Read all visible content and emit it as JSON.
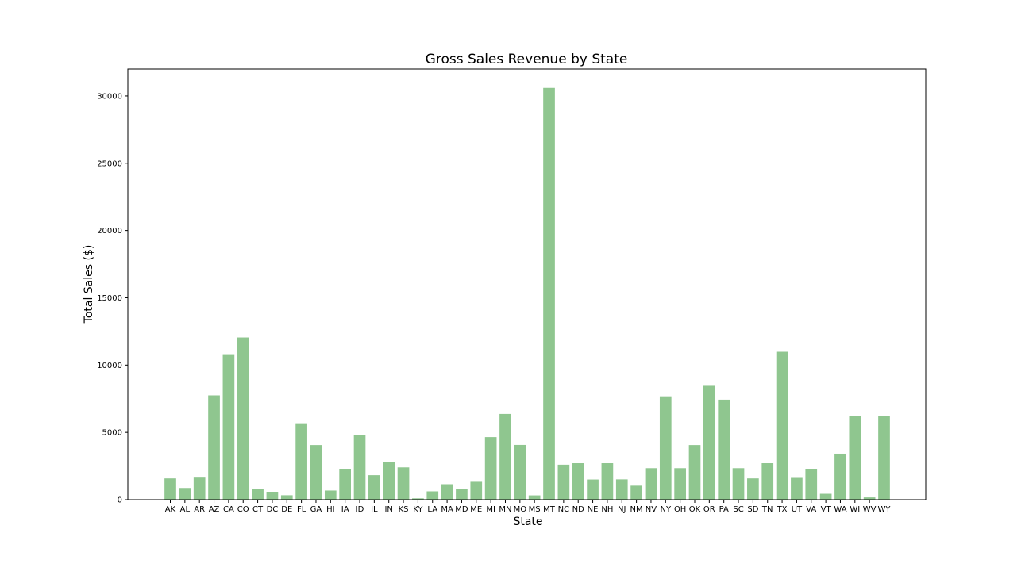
{
  "chart_data": {
    "type": "bar",
    "title": "Gross Sales Revenue by State",
    "xlabel": "State",
    "ylabel": "Total Sales ($)",
    "ylim": [
      0,
      32000
    ],
    "yticks": [
      0,
      5000,
      10000,
      15000,
      20000,
      25000,
      30000
    ],
    "grid": false,
    "bar_color": "#8fc68f",
    "categories": [
      "AK",
      "AL",
      "AR",
      "AZ",
      "CA",
      "CO",
      "CT",
      "DC",
      "DE",
      "FL",
      "GA",
      "HI",
      "IA",
      "ID",
      "IL",
      "IN",
      "KS",
      "KY",
      "LA",
      "MA",
      "MD",
      "ME",
      "MI",
      "MN",
      "MO",
      "MS",
      "MT",
      "NC",
      "ND",
      "NE",
      "NH",
      "NJ",
      "NM",
      "NV",
      "NY",
      "OH",
      "OK",
      "OR",
      "PA",
      "SC",
      "SD",
      "TN",
      "TX",
      "UT",
      "VA",
      "VT",
      "WA",
      "WI",
      "WV",
      "WY"
    ],
    "values": [
      1580,
      870,
      1640,
      7750,
      10750,
      12050,
      800,
      560,
      330,
      5620,
      4060,
      680,
      2270,
      4780,
      1820,
      2770,
      2400,
      100,
      620,
      1150,
      790,
      1330,
      4650,
      6370,
      4070,
      320,
      30600,
      2600,
      2710,
      1500,
      2710,
      1510,
      1040,
      2340,
      7680,
      2340,
      4060,
      8460,
      7430,
      2340,
      1580,
      2710,
      10990,
      1620,
      2270,
      440,
      3420,
      6200,
      170,
      6200
    ]
  }
}
